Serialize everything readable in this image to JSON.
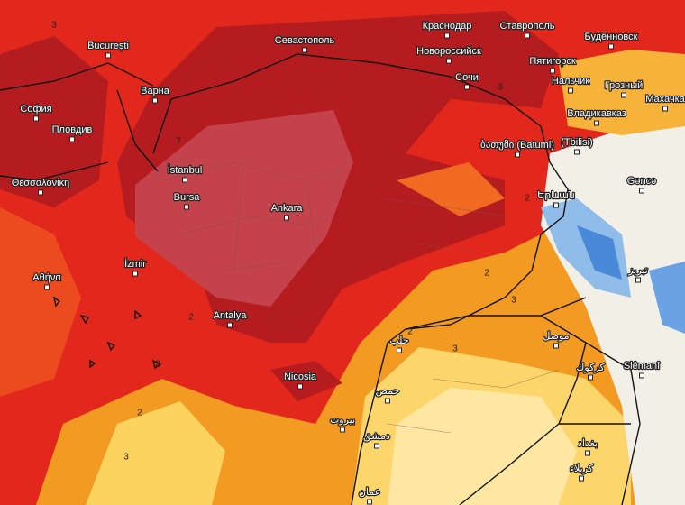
{
  "map": {
    "cities": [
      "București",
      "Варна",
      "София",
      "Пловдив",
      "Θεσσαλονίκη",
      "Αθήνα",
      "İstanbul",
      "Bursa",
      "Ankara",
      "İzmir",
      "Antalya",
      "Nicosia",
      "Севастополь",
      "Краснодар",
      "Ставрополь",
      "Новороссийск",
      "Будённовск",
      "Пятигорск",
      "Сочи",
      "Нальчик",
      "Грозный",
      "Махачка",
      "Владикавказ",
      "ბათუმი (Batumi)",
      "(Tbilisi)",
      "Gəncə",
      "Երևան",
      "حلب",
      "حمص",
      "بيروت",
      "دمشق",
      "موصل",
      "كركوك",
      "Slêmanî",
      "تبريز",
      "بغداد",
      "كربلاء",
      "عمان"
    ],
    "contour_labels": [
      "3",
      "7",
      "2",
      "2",
      "2",
      "3",
      "3",
      "2",
      "3",
      "2",
      "2",
      "3"
    ]
  }
}
